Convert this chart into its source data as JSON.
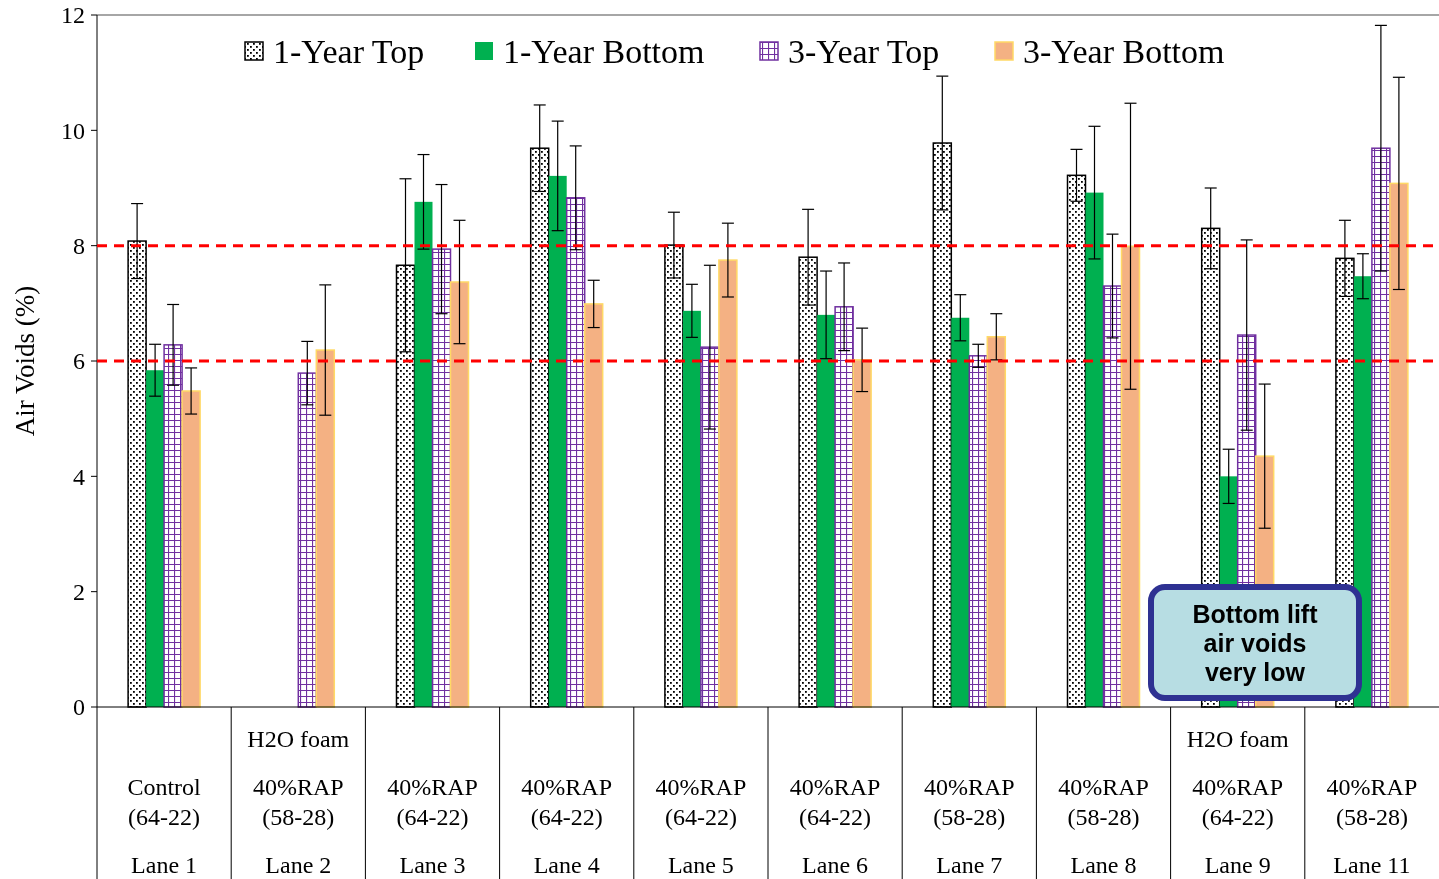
{
  "chart_data": {
    "type": "bar",
    "ylabel": "Air Voids (%)",
    "categories": [
      "Control (64-22)\nLane 1",
      "H2O foam\n40%RAP (58-28)\nLane 2",
      "40%RAP (64-22)\nLane 3",
      "40%RAP (64-22)\nLane 4",
      "40%RAP (64-22)\nLane 5",
      "40%RAP (64-22)\nLane 6",
      "40%RAP (58-28)\nLane 7",
      "40%RAP (58-28)\nLane 8",
      "H2O foam\n40%RAP (64-22)\nLane 9",
      "40%RAP (58-28)\nLane 11"
    ],
    "series": [
      {
        "name": "1-Year Top",
        "color": "#000000",
        "values": [
          8.08,
          null,
          7.66,
          9.69,
          8.01,
          7.8,
          9.78,
          9.22,
          8.3,
          7.78
        ],
        "errors": [
          0.65,
          null,
          1.5,
          0.75,
          0.57,
          0.83,
          1.16,
          0.45,
          0.7,
          0.66
        ]
      },
      {
        "name": "1-Year Bottom",
        "color": "#00b050",
        "values": [
          5.84,
          null,
          8.76,
          9.21,
          6.87,
          6.8,
          6.75,
          8.92,
          4.0,
          7.47
        ],
        "errors": [
          0.45,
          null,
          0.82,
          0.95,
          0.46,
          0.76,
          0.4,
          1.15,
          0.47,
          0.39
        ]
      },
      {
        "name": "3-Year Top",
        "color": "#7030a0",
        "values": [
          6.28,
          5.79,
          7.94,
          8.83,
          6.24,
          6.94,
          6.09,
          7.3,
          6.45,
          9.69
        ],
        "errors": [
          0.7,
          0.55,
          1.12,
          0.9,
          1.42,
          0.76,
          0.2,
          0.9,
          1.65,
          2.13
        ]
      },
      {
        "name": "3-Year Bottom",
        "color": "#f4b183",
        "values": [
          5.48,
          6.19,
          7.37,
          6.99,
          7.75,
          6.02,
          6.42,
          7.99,
          4.35,
          9.08
        ],
        "errors": [
          0.4,
          1.13,
          1.07,
          0.41,
          0.64,
          0.55,
          0.4,
          2.48,
          1.25,
          1.84
        ]
      }
    ],
    "ylim": [
      0,
      12
    ],
    "yticks": [
      0,
      2,
      4,
      6,
      8,
      10,
      12
    ],
    "grid": false,
    "legend": "top",
    "ref_lines": [
      {
        "axis": "y",
        "value": 8,
        "color": "#ff0000",
        "line_style": "dashed"
      },
      {
        "axis": "y",
        "value": 6,
        "color": "#ff0000",
        "line_style": "dashed"
      }
    ],
    "annotations": [
      "Bottom lift air voids very low"
    ]
  }
}
